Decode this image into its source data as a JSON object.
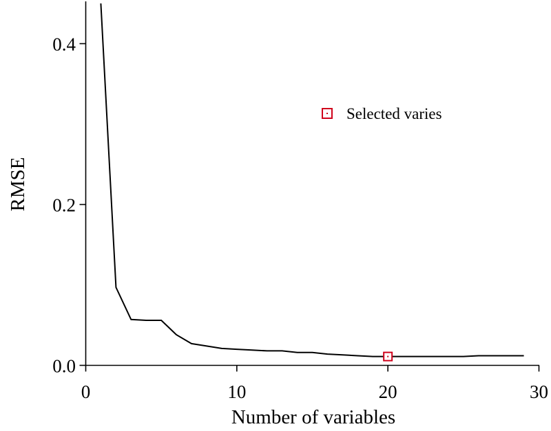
{
  "chart_data": {
    "type": "line",
    "title": "",
    "xlabel": "Number of variables",
    "ylabel": "RMSE",
    "xlim": [
      0,
      30
    ],
    "ylim": [
      0,
      0.45
    ],
    "xticks": [
      0,
      10,
      20,
      30
    ],
    "xtick_labels": [
      "0",
      "10",
      "20",
      "30"
    ],
    "yticks": [
      0.0,
      0.2,
      0.4
    ],
    "ytick_labels": [
      "0.0",
      "0.2",
      "0.4"
    ],
    "grid": false,
    "series": [
      {
        "color": "#000000",
        "x": [
          1,
          2,
          3,
          4,
          5,
          6,
          7,
          8,
          9,
          10,
          11,
          12,
          13,
          14,
          15,
          16,
          17,
          18,
          19,
          20,
          21,
          22,
          23,
          24,
          25,
          26,
          27,
          28,
          29
        ],
        "y": [
          0.45,
          0.097,
          0.057,
          0.056,
          0.056,
          0.038,
          0.027,
          0.024,
          0.021,
          0.02,
          0.019,
          0.018,
          0.018,
          0.016,
          0.016,
          0.014,
          0.013,
          0.012,
          0.011,
          0.011,
          0.011,
          0.011,
          0.011,
          0.011,
          0.011,
          0.012,
          0.012,
          0.012,
          0.012
        ]
      }
    ],
    "markers": [
      {
        "name": "Selected varies",
        "x": 20,
        "y": 0.011,
        "color": "#d0021b",
        "shape": "square"
      }
    ],
    "legend": {
      "placement": "upper-right",
      "entries": [
        {
          "label": "Selected varies",
          "color": "#d0021b",
          "shape": "square"
        }
      ]
    }
  }
}
